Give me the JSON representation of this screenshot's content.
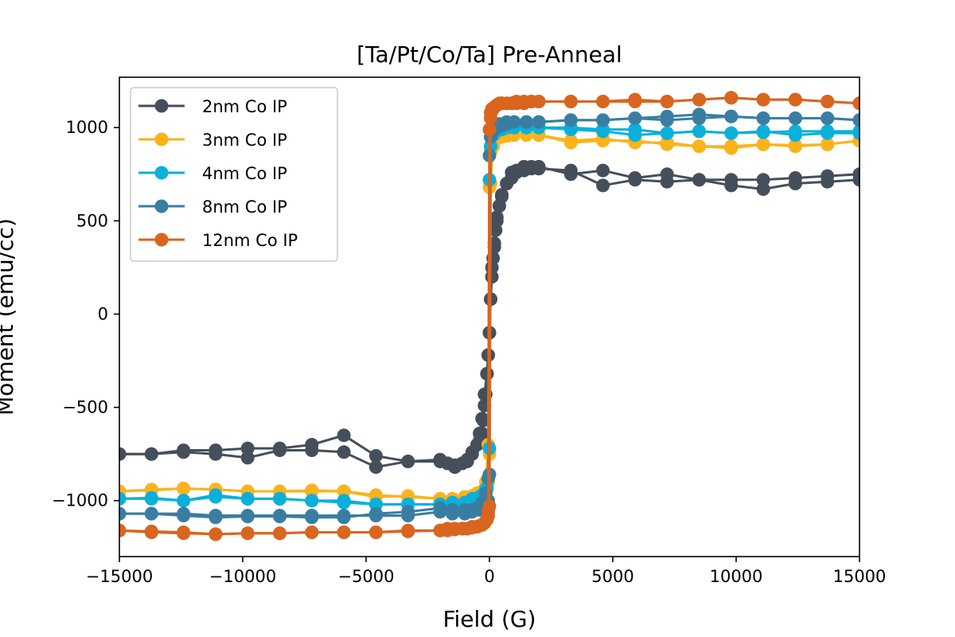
{
  "chart_data": {
    "type": "line",
    "title": "[Ta/Pt/Co/Ta] Pre-Anneal",
    "xlabel": "Field (G)",
    "ylabel": "Moment (emu/cc)",
    "xlim": [
      -15000,
      15000
    ],
    "ylim": [
      -1300,
      1270
    ],
    "x_ticks": [
      -15000,
      -10000,
      -5000,
      0,
      5000,
      10000,
      15000
    ],
    "x_tick_labels": [
      "−15000",
      "−10000",
      "−5000",
      "0",
      "5000",
      "10000",
      "15000"
    ],
    "y_ticks": [
      -1000,
      -500,
      0,
      500,
      1000
    ],
    "y_tick_labels": [
      "−1000",
      "−500",
      "0",
      "500",
      "1000"
    ],
    "grid": false,
    "legend_position": "upper-left",
    "series": [
      {
        "name": "2nm Co IP",
        "color": "#454f5b",
        "branches": [
          {
            "x": [
              15000,
              13700,
              12400,
              11100,
              9800,
              8500,
              7200,
              5900,
              4600,
              3300,
              2000,
              1700,
              1400,
              1100,
              900,
              700,
              500,
              400,
              300,
              200,
              100,
              50,
              0,
              -50,
              -100,
              -150,
              -200,
              -250,
              -300,
              -400,
              -500,
              -700,
              -900,
              -1100,
              -1400,
              -1700,
              -2000,
              -3300,
              -4600,
              -5900,
              -7200,
              -8500,
              -9800,
              -11100,
              -12400,
              -13700,
              -15000
            ],
            "y": [
              720,
              710,
              700,
              670,
              690,
              720,
              710,
              720,
              690,
              770,
              780,
              780,
              770,
              770,
              760,
              700,
              640,
              580,
              500,
              380,
              250,
              80,
              -100,
              -220,
              -320,
              -430,
              -490,
              -570,
              -640,
              -680,
              -700,
              -750,
              -790,
              -800,
              -810,
              -800,
              -790,
              -790,
              -760,
              -650,
              -700,
              -720,
              -720,
              -730,
              -730,
              -750,
              -750
            ]
          },
          {
            "x": [
              -15000,
              -13700,
              -12400,
              -11100,
              -9800,
              -8500,
              -7200,
              -5900,
              -4600,
              -3300,
              -2000,
              -1700,
              -1400,
              -1100,
              -900,
              -700,
              -500,
              -400,
              -300,
              -200,
              -100,
              -50,
              0,
              50,
              100,
              150,
              200,
              250,
              300,
              400,
              500,
              700,
              900,
              1100,
              1400,
              1700,
              2000,
              3300,
              4600,
              5900,
              7200,
              8500,
              9800,
              11100,
              12400,
              13700,
              15000
            ],
            "y": [
              -750,
              -750,
              -740,
              -750,
              -770,
              -730,
              -730,
              -740,
              -820,
              -790,
              -780,
              -800,
              -820,
              -800,
              -780,
              -740,
              -700,
              -640,
              -560,
              -430,
              -320,
              -220,
              -100,
              80,
              200,
              300,
              360,
              450,
              520,
              580,
              630,
              700,
              730,
              760,
              790,
              790,
              790,
              750,
              770,
              730,
              750,
              720,
              720,
              720,
              730,
              740,
              750
            ]
          }
        ]
      },
      {
        "name": "3nm Co IP",
        "color": "#fbb31c",
        "branches": [
          {
            "x": [
              15000,
              13700,
              12400,
              11100,
              9800,
              8500,
              7200,
              5900,
              4600,
              3300,
              2000,
              1500,
              1000,
              700,
              500,
              300,
              150,
              50,
              0,
              -50,
              -100,
              -200,
              -400,
              -700,
              -1000,
              -1500,
              -2000,
              -3300,
              -4600,
              -5900,
              -7200,
              -8500,
              -9800,
              -11100,
              -12400,
              -13700,
              -15000
            ],
            "y": [
              930,
              910,
              900,
              910,
              890,
              900,
              910,
              930,
              930,
              920,
              960,
              960,
              960,
              955,
              950,
              940,
              900,
              700,
              -750,
              -900,
              -940,
              -960,
              -970,
              -980,
              -990,
              -990,
              -990,
              -980,
              -970,
              -950,
              -950,
              -950,
              -950,
              -940,
              -935,
              -945,
              -950
            ]
          },
          {
            "x": [
              -15000,
              -13700,
              -12400,
              -11100,
              -9800,
              -8500,
              -7200,
              -5900,
              -4600,
              -3300,
              -2000,
              -1500,
              -1000,
              -700,
              -500,
              -300,
              -150,
              -50,
              0,
              50,
              100,
              200,
              400,
              700,
              1000,
              1500,
              2000,
              3300,
              4600,
              5900,
              7200,
              8500,
              9800,
              11100,
              12400,
              13700,
              15000
            ],
            "y": [
              -950,
              -940,
              -935,
              -940,
              -950,
              -950,
              -945,
              -950,
              -980,
              -975,
              -990,
              -990,
              -980,
              -975,
              -960,
              -950,
              -900,
              -700,
              680,
              870,
              930,
              950,
              960,
              960,
              960,
              960,
              960,
              930,
              940,
              920,
              920,
              900,
              900,
              910,
              905,
              910,
              930
            ]
          }
        ]
      },
      {
        "name": "4nm Co IP",
        "color": "#0ab0da",
        "branches": [
          {
            "x": [
              15000,
              13700,
              12400,
              11100,
              9800,
              8500,
              7200,
              5900,
              4600,
              3300,
              2000,
              1500,
              1000,
              700,
              500,
              300,
              150,
              50,
              0,
              -50,
              -100,
              -200,
              -400,
              -700,
              -1000,
              -1500,
              -2000,
              -3300,
              -4600,
              -5900,
              -7200,
              -8500,
              -9800,
              -11100,
              -12400,
              -13700,
              -15000
            ],
            "y": [
              970,
              970,
              960,
              980,
              970,
              980,
              970,
              990,
              990,
              1000,
              1000,
              1000,
              1000,
              1000,
              990,
              980,
              960,
              900,
              -720,
              -880,
              -930,
              -960,
              -980,
              -990,
              -1010,
              -1010,
              -1020,
              -1020,
              -1020,
              -1000,
              -1000,
              -990,
              -990,
              -980,
              -1000,
              -990,
              -990
            ]
          },
          {
            "x": [
              -15000,
              -13700,
              -12400,
              -11100,
              -9800,
              -8500,
              -7200,
              -5900,
              -4600,
              -3300,
              -2000,
              -1500,
              -1000,
              -700,
              -500,
              -300,
              -150,
              -50,
              0,
              50,
              100,
              200,
              400,
              700,
              1000,
              1500,
              2000,
              3300,
              4600,
              5900,
              7200,
              8500,
              9800,
              11100,
              12400,
              13700,
              15000
            ],
            "y": [
              -990,
              -985,
              -1000,
              -970,
              -990,
              -990,
              -1000,
              -1010,
              -1020,
              -1020,
              -1020,
              -1020,
              -1010,
              -1000,
              -990,
              -970,
              -940,
              -880,
              720,
              900,
              960,
              980,
              990,
              1000,
              1000,
              1000,
              1000,
              990,
              980,
              960,
              970,
              980,
              970,
              975,
              980,
              980,
              980
            ]
          }
        ]
      },
      {
        "name": "8nm Co IP",
        "color": "#397ea2",
        "branches": [
          {
            "x": [
              15000,
              13700,
              12400,
              11100,
              9800,
              8500,
              7200,
              5900,
              4600,
              3300,
              2000,
              1500,
              1000,
              700,
              500,
              300,
              150,
              50,
              0,
              -50,
              -100,
              -200,
              -400,
              -700,
              -1000,
              -1500,
              -2000,
              -3300,
              -4600,
              -5900,
              -7200,
              -8500,
              -9800,
              -11100,
              -12400,
              -13700,
              -15000
            ],
            "y": [
              1040,
              1050,
              1050,
              1050,
              1060,
              1070,
              1060,
              1050,
              1040,
              1040,
              1030,
              1030,
              1030,
              1020,
              1010,
              1000,
              980,
              950,
              -860,
              -1000,
              -1020,
              -1040,
              -1050,
              -1060,
              -1070,
              -1070,
              -1060,
              -1080,
              -1080,
              -1080,
              -1080,
              -1080,
              -1080,
              -1080,
              -1070,
              -1070,
              -1070
            ]
          },
          {
            "x": [
              -15000,
              -13700,
              -12400,
              -11100,
              -9800,
              -8500,
              -7200,
              -5900,
              -4600,
              -3300,
              -2000,
              -1500,
              -1000,
              -700,
              -500,
              -300,
              -150,
              -50,
              0,
              50,
              100,
              200,
              400,
              700,
              1000,
              1500,
              2000,
              3300,
              4600,
              5900,
              7200,
              8500,
              9800,
              11100,
              12400,
              13700,
              15000
            ],
            "y": [
              -1070,
              -1070,
              -1080,
              -1090,
              -1085,
              -1085,
              -1090,
              -1090,
              -1070,
              -1060,
              -1040,
              -1050,
              -1050,
              -1050,
              -1040,
              -1010,
              -960,
              -880,
              850,
              950,
              990,
              1010,
              1020,
              1030,
              1030,
              1030,
              1030,
              1040,
              1040,
              1050,
              1040,
              1050,
              1060,
              1050,
              1050,
              1050,
              1040
            ]
          }
        ]
      },
      {
        "name": "12nm Co IP",
        "color": "#d9651f",
        "branches": [
          {
            "x": [
              15000,
              13700,
              12400,
              11100,
              9800,
              8500,
              7200,
              5900,
              4600,
              3300,
              2000,
              1700,
              1400,
              1100,
              900,
              700,
              500,
              400,
              300,
              200,
              100,
              50,
              0,
              -50,
              -100,
              -200,
              -300,
              -500,
              -700,
              -900,
              -1100,
              -1400,
              -1700,
              -2000,
              -3300,
              -4600,
              -5900,
              -7200,
              -8500,
              -9800,
              -11100,
              -12400,
              -13700,
              -15000
            ],
            "y": [
              1130,
              1140,
              1150,
              1150,
              1160,
              1150,
              1140,
              1140,
              1140,
              1140,
              1140,
              1140,
              1140,
              1140,
              1130,
              1130,
              1130,
              1130,
              1120,
              1110,
              1090,
              1050,
              -1030,
              -1080,
              -1100,
              -1120,
              -1130,
              -1140,
              -1140,
              -1150,
              -1150,
              -1150,
              -1150,
              -1160,
              -1160,
              -1170,
              -1170,
              -1170,
              -1175,
              -1175,
              -1180,
              -1175,
              -1170,
              -1160
            ]
          },
          {
            "x": [
              -15000,
              -13700,
              -12400,
              -11100,
              -9800,
              -8500,
              -7200,
              -5900,
              -4600,
              -3300,
              -2000,
              -1700,
              -1400,
              -1100,
              -900,
              -700,
              -500,
              -400,
              -300,
              -200,
              -100,
              -50,
              0,
              50,
              100,
              200,
              300,
              500,
              700,
              900,
              1100,
              1400,
              1700,
              2000,
              3300,
              4600,
              5900,
              7200,
              8500,
              9800,
              11100,
              12400,
              13700,
              15000
            ],
            "y": [
              -1160,
              -1165,
              -1170,
              -1180,
              -1175,
              -1175,
              -1170,
              -1170,
              -1170,
              -1165,
              -1160,
              -1160,
              -1155,
              -1150,
              -1150,
              -1145,
              -1140,
              -1135,
              -1130,
              -1120,
              -1100,
              -1060,
              990,
              1080,
              1100,
              1110,
              1120,
              1130,
              1130,
              1130,
              1130,
              1130,
              1140,
              1140,
              1140,
              1140,
              1150,
              1140,
              1150,
              1160,
              1150,
              1150,
              1140,
              1130
            ]
          }
        ]
      }
    ]
  }
}
